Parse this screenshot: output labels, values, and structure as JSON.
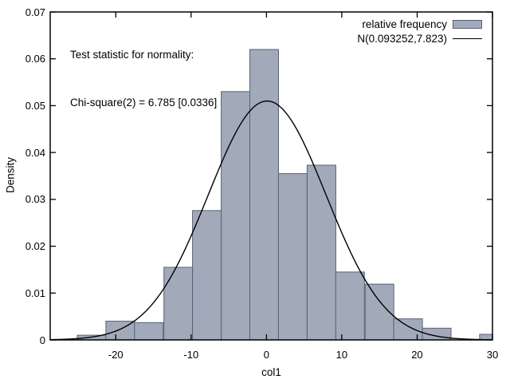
{
  "annotation": {
    "line1": "Test statistic for normality:",
    "line2": "Chi-square(2) = 6.785 [0.0336]"
  },
  "legend": {
    "series1_label": "relative frequency",
    "series2_label": "N(0.093252,7.823)"
  },
  "colors": {
    "bar_fill": "#a2aaba",
    "bar_border": "#566079",
    "curve": "#000000",
    "frame": "#000000",
    "text": "#000000",
    "background": "#ffffff"
  },
  "chart_data": {
    "type": "bar",
    "subtype": "histogram-with-normal-curve",
    "title": "",
    "xlabel": "col1",
    "ylabel": "Density",
    "xlim": [
      -28.7,
      30.0
    ],
    "ylim": [
      0,
      0.07
    ],
    "grid": false,
    "legend_position": "top-right",
    "x_ticks": [
      -20,
      -10,
      0,
      10,
      20,
      30
    ],
    "x_tick_labels": [
      "-20",
      "-10",
      "0",
      "10",
      "20",
      "30"
    ],
    "y_ticks": [
      0,
      0.01,
      0.02,
      0.03,
      0.04,
      0.05,
      0.06,
      0.07
    ],
    "y_tick_labels": [
      "0",
      "0.01",
      "0.02",
      "0.03",
      "0.04",
      "0.05",
      "0.06",
      "0.07"
    ],
    "bin_width": 3.81,
    "bin_centers": [
      -23.2,
      -19.4,
      -15.6,
      -11.7,
      -7.9,
      -4.1,
      -0.3,
      3.5,
      7.3,
      11.1,
      15.0,
      18.8,
      22.6,
      26.4,
      30.2
    ],
    "heights": [
      0.001,
      0.004,
      0.0037,
      0.0155,
      0.0276,
      0.053,
      0.062,
      0.0355,
      0.0373,
      0.0145,
      0.0119,
      0.0045,
      0.0025,
      0.0,
      0.0012
    ],
    "normal_curve": {
      "mean": 0.093252,
      "sd": 7.823
    }
  }
}
